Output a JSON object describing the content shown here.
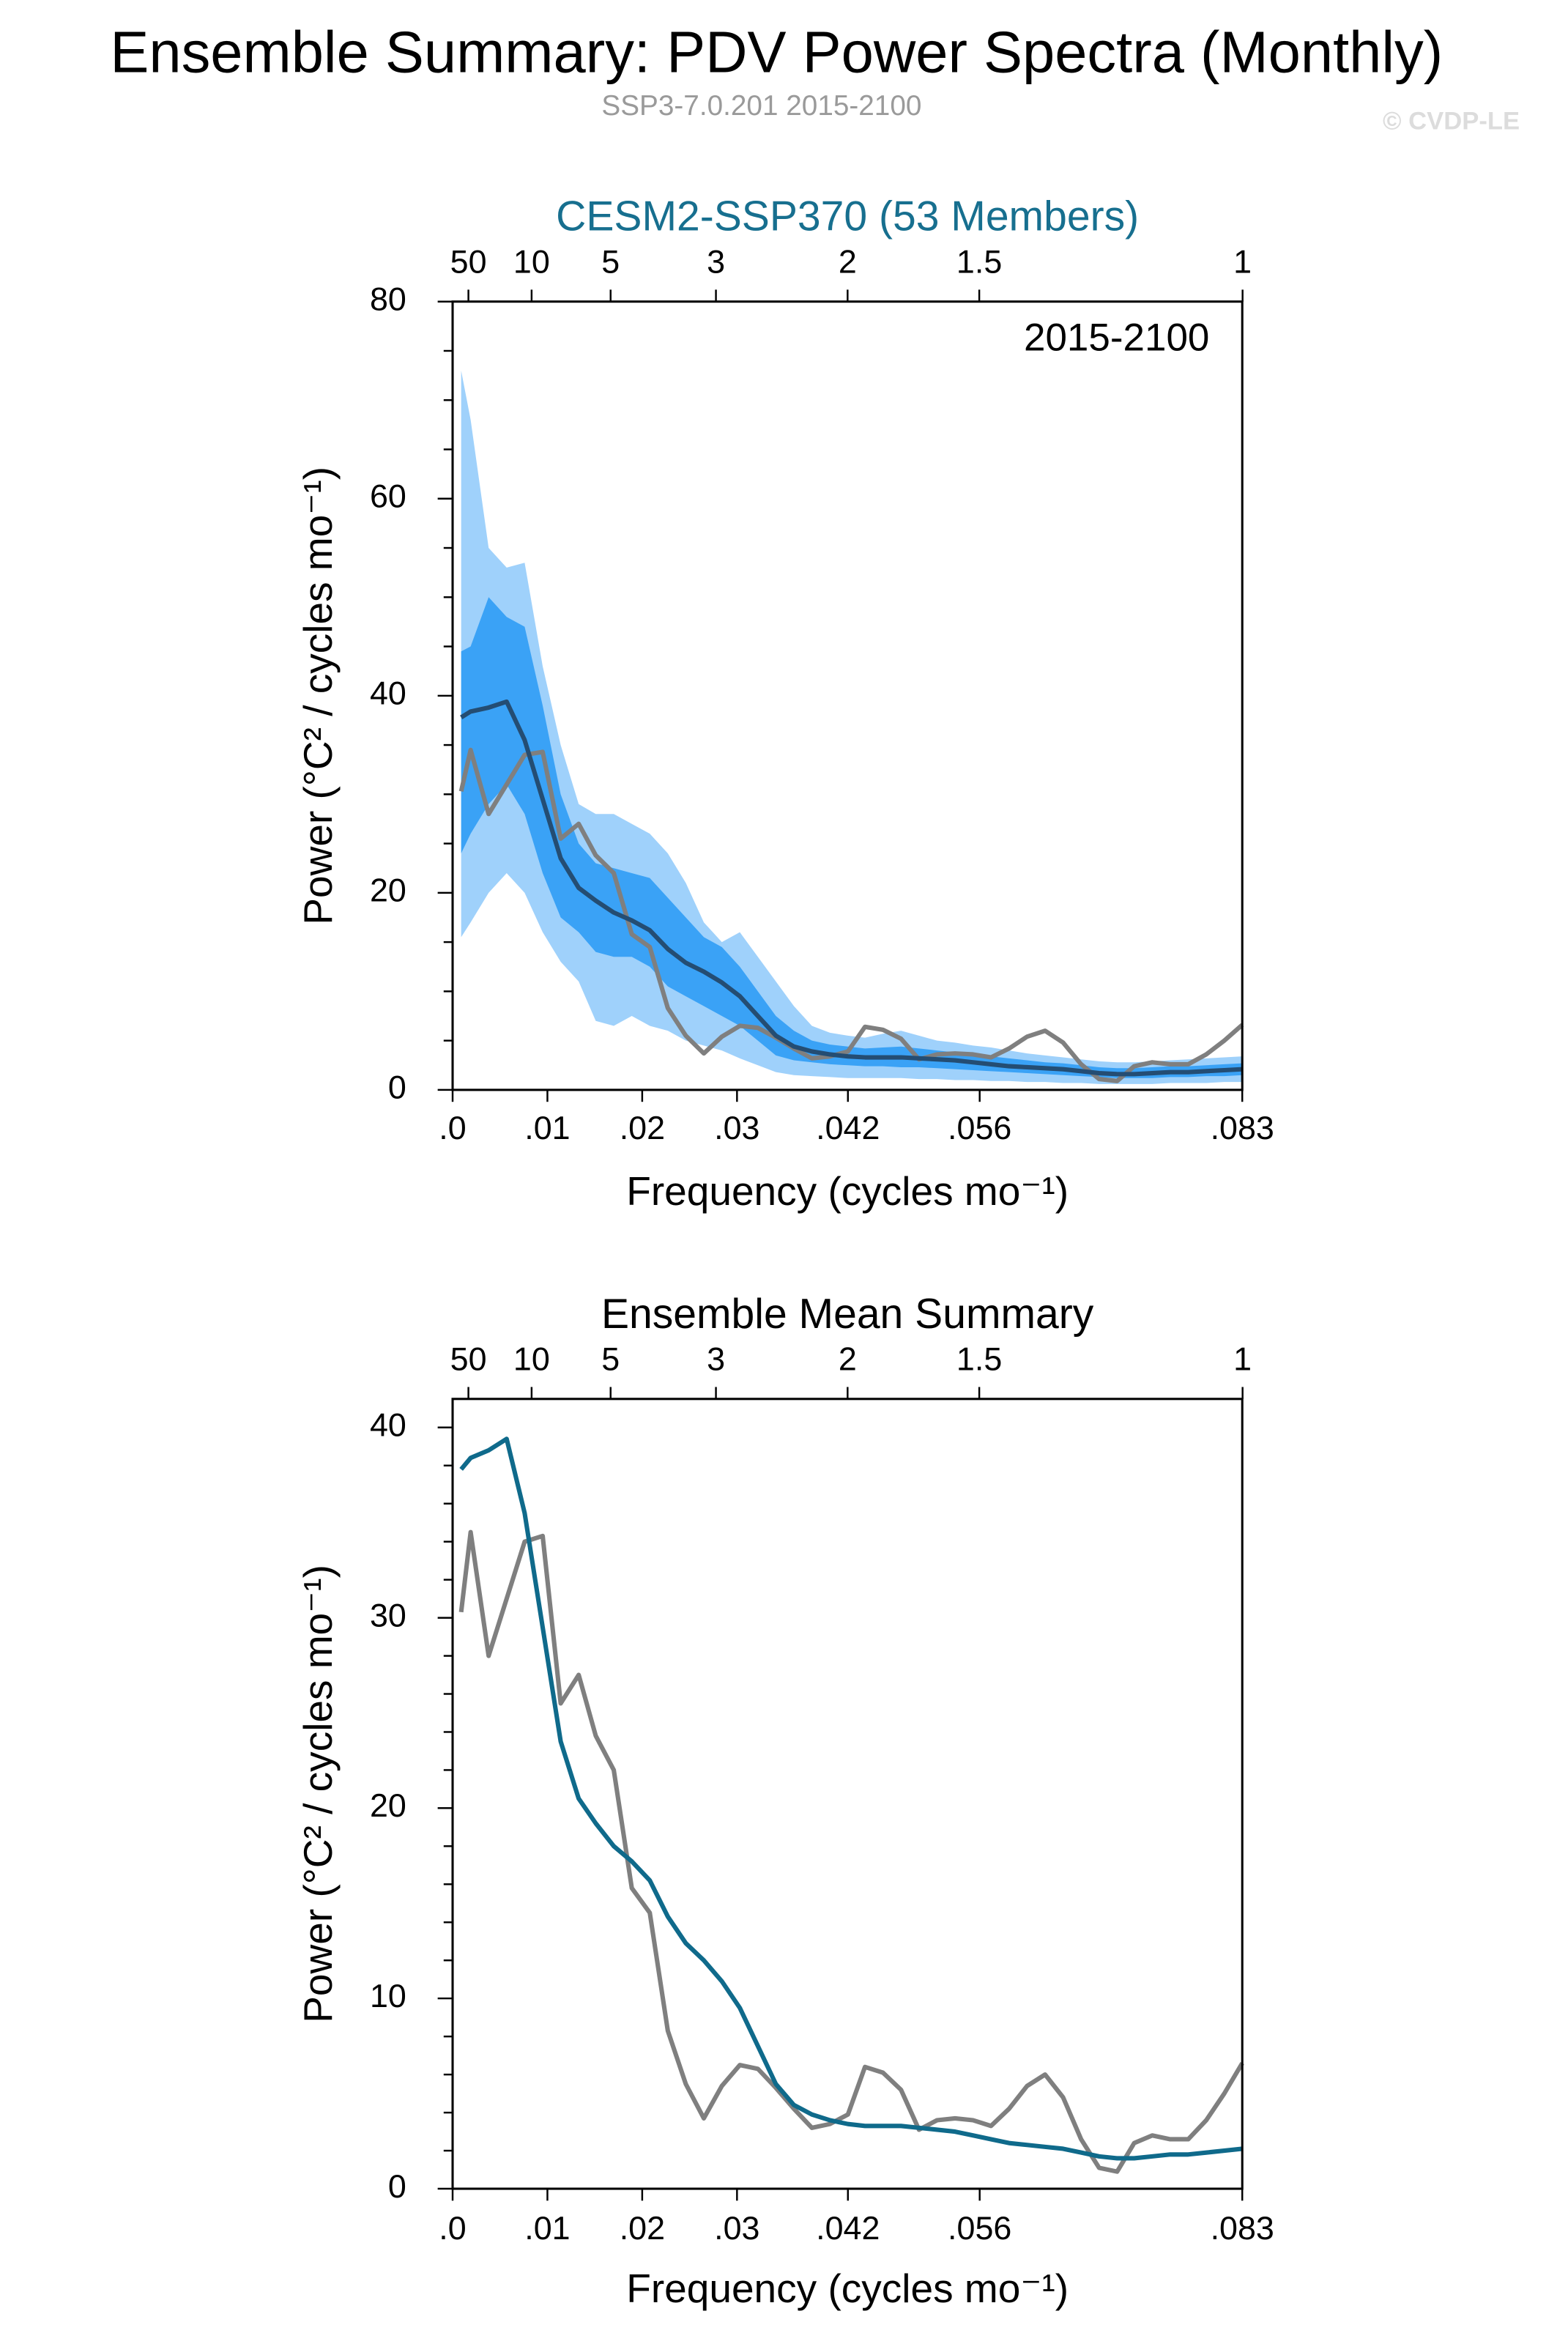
{
  "title": "Ensemble Summary: PDV Power Spectra (Monthly)",
  "subtitle": "SSP3-7.0.201 2015-2100",
  "credit": "© CVDP-LE",
  "chart_data": [
    {
      "type": "band",
      "title": "CESM2-SSP370 (53 Members)",
      "title_color": "#176f8f",
      "annotation": "2015-2100",
      "xlabel": "Frequency (cycles mo⁻¹)",
      "ylabel": "Power (°C² / cycles mo⁻¹)",
      "x": [
        0.0009,
        0.0019,
        0.0038,
        0.0057,
        0.0076,
        0.0095,
        0.0114,
        0.0133,
        0.0151,
        0.017,
        0.0189,
        0.0208,
        0.0227,
        0.0246,
        0.0265,
        0.0284,
        0.0303,
        0.0322,
        0.0341,
        0.036,
        0.0379,
        0.0398,
        0.0417,
        0.0435,
        0.0454,
        0.0473,
        0.0492,
        0.0511,
        0.053,
        0.0549,
        0.0568,
        0.0587,
        0.0606,
        0.0625,
        0.0644,
        0.0663,
        0.0682,
        0.0701,
        0.0719,
        0.0738,
        0.0757,
        0.0776,
        0.0795,
        0.0814,
        0.0833
      ],
      "bands": [
        {
          "color": "#9fd1fb",
          "upper": [
            73,
            68,
            55,
            53,
            53.5,
            43,
            35,
            29,
            28,
            28,
            27,
            26,
            24,
            21,
            17,
            15,
            16,
            13.5,
            11,
            8.5,
            6.5,
            5.8,
            5.5,
            5.3,
            5.7,
            6,
            5.5,
            5,
            4.8,
            4.5,
            4.3,
            4,
            3.7,
            3.5,
            3.3,
            3.1,
            2.9,
            2.8,
            2.8,
            2.9,
            3.0,
            3.1,
            3.2,
            3.3,
            3.4
          ],
          "lower": [
            15.5,
            17,
            20,
            22,
            20,
            16,
            13,
            11,
            7,
            6.5,
            7.5,
            6.5,
            6,
            5,
            4.5,
            4,
            3.2,
            2.5,
            1.8,
            1.5,
            1.4,
            1.3,
            1.2,
            1.2,
            1.2,
            1.2,
            1.1,
            1.1,
            1.0,
            1.0,
            0.9,
            0.9,
            0.8,
            0.8,
            0.7,
            0.7,
            0.6,
            0.6,
            0.6,
            0.6,
            0.7,
            0.7,
            0.7,
            0.8,
            0.8
          ]
        },
        {
          "color": "#3aa2f6",
          "upper": [
            44.5,
            45,
            50,
            48,
            47,
            39,
            30,
            25,
            23,
            22.5,
            22,
            21.5,
            19.5,
            17.5,
            15.5,
            14.5,
            12.5,
            10,
            7.5,
            6,
            5,
            4.6,
            4.4,
            4.2,
            4.3,
            4.4,
            4.2,
            4,
            3.8,
            3.6,
            3.4,
            3.2,
            3.0,
            2.8,
            2.7,
            2.5,
            2.3,
            2.2,
            2.2,
            2.3,
            2.4,
            2.4,
            2.5,
            2.6,
            2.7
          ],
          "lower": [
            24,
            26,
            29,
            31,
            28,
            22,
            17.5,
            16,
            14,
            13.5,
            13.5,
            12.5,
            10.5,
            9.5,
            8.5,
            7.5,
            6.5,
            5,
            3.5,
            3,
            2.8,
            2.6,
            2.5,
            2.4,
            2.4,
            2.3,
            2.3,
            2.2,
            2.1,
            2.0,
            1.9,
            1.8,
            1.7,
            1.6,
            1.5,
            1.4,
            1.3,
            1.2,
            1.2,
            1.2,
            1.3,
            1.3,
            1.4,
            1.4,
            1.5
          ]
        }
      ],
      "series": [
        {
          "color": "#7f7f7f",
          "values": [
            30.3,
            34.5,
            28,
            31,
            34,
            34.3,
            25.5,
            27,
            23.8,
            22,
            15.8,
            14.5,
            8.3,
            5.5,
            3.7,
            5.4,
            6.5,
            6.3,
            5.3,
            4.2,
            3.2,
            3.4,
            3.9,
            6.4,
            6.1,
            5.2,
            3.1,
            3.6,
            3.7,
            3.6,
            3.3,
            4.2,
            5.4,
            6.0,
            4.8,
            2.6,
            1.1,
            0.9,
            2.4,
            2.8,
            2.6,
            2.6,
            3.6,
            5.0,
            6.6
          ]
        },
        {
          "color": "#244d73",
          "values": [
            37.8,
            38.4,
            38.8,
            39.4,
            35.5,
            29.5,
            23.5,
            20.5,
            19.2,
            18.0,
            17.2,
            16.2,
            14.3,
            12.9,
            12.0,
            10.9,
            9.5,
            7.5,
            5.5,
            4.4,
            3.9,
            3.6,
            3.4,
            3.3,
            3.3,
            3.3,
            3.2,
            3.1,
            3.0,
            2.8,
            2.6,
            2.4,
            2.3,
            2.2,
            2.1,
            1.9,
            1.7,
            1.6,
            1.6,
            1.7,
            1.8,
            1.8,
            1.9,
            2.0,
            2.1
          ]
        }
      ],
      "xlim": [
        0,
        0.0833
      ],
      "xticks": [
        {
          "value": 0,
          "label": ".0"
        },
        {
          "value": 0.01,
          "label": ".01"
        },
        {
          "value": 0.02,
          "label": ".02"
        },
        {
          "value": 0.03,
          "label": ".03"
        },
        {
          "value": 0.0417,
          "label": ".042"
        },
        {
          "value": 0.0556,
          "label": ".056"
        },
        {
          "value": 0.0833,
          "label": ".083"
        }
      ],
      "x2ticks": [
        50,
        10,
        5,
        3,
        2,
        1.5,
        1
      ],
      "ylim": [
        0,
        80
      ],
      "yticks": [
        0,
        20,
        40,
        60,
        80
      ],
      "yminorticks": [
        5,
        10,
        15,
        25,
        30,
        35,
        45,
        50,
        55,
        65,
        70,
        75
      ]
    },
    {
      "type": "line",
      "title": "Ensemble Mean Summary",
      "title_color": "#000000",
      "xlabel": "Frequency (cycles mo⁻¹)",
      "ylabel": "Power (°C² / cycles mo⁻¹)",
      "x": [
        0.0009,
        0.0019,
        0.0038,
        0.0057,
        0.0076,
        0.0095,
        0.0114,
        0.0133,
        0.0151,
        0.017,
        0.0189,
        0.0208,
        0.0227,
        0.0246,
        0.0265,
        0.0284,
        0.0303,
        0.0322,
        0.0341,
        0.036,
        0.0379,
        0.0398,
        0.0417,
        0.0435,
        0.0454,
        0.0473,
        0.0492,
        0.0511,
        0.053,
        0.0549,
        0.0568,
        0.0587,
        0.0606,
        0.0625,
        0.0644,
        0.0663,
        0.0682,
        0.0701,
        0.0719,
        0.0738,
        0.0757,
        0.0776,
        0.0795,
        0.0814,
        0.0833
      ],
      "series": [
        {
          "color": "#7f7f7f",
          "values": [
            30.3,
            34.5,
            28,
            31,
            34,
            34.3,
            25.5,
            27,
            23.8,
            22,
            15.8,
            14.5,
            8.3,
            5.5,
            3.7,
            5.4,
            6.5,
            6.3,
            5.3,
            4.2,
            3.2,
            3.4,
            3.9,
            6.4,
            6.1,
            5.2,
            3.1,
            3.6,
            3.7,
            3.6,
            3.3,
            4.2,
            5.4,
            6.0,
            4.8,
            2.6,
            1.1,
            0.9,
            2.4,
            2.8,
            2.6,
            2.6,
            3.6,
            5.0,
            6.6
          ]
        },
        {
          "color": "#0f6a8b",
          "values": [
            37.8,
            38.4,
            38.8,
            39.4,
            35.5,
            29.5,
            23.5,
            20.5,
            19.2,
            18.0,
            17.2,
            16.2,
            14.3,
            12.9,
            12.0,
            10.9,
            9.5,
            7.5,
            5.5,
            4.4,
            3.9,
            3.6,
            3.4,
            3.3,
            3.3,
            3.3,
            3.2,
            3.1,
            3.0,
            2.8,
            2.6,
            2.4,
            2.3,
            2.2,
            2.1,
            1.9,
            1.7,
            1.6,
            1.6,
            1.7,
            1.8,
            1.8,
            1.9,
            2.0,
            2.1
          ]
        }
      ],
      "xlim": [
        0,
        0.0833
      ],
      "xticks": [
        {
          "value": 0,
          "label": ".0"
        },
        {
          "value": 0.01,
          "label": ".01"
        },
        {
          "value": 0.02,
          "label": ".02"
        },
        {
          "value": 0.03,
          "label": ".03"
        },
        {
          "value": 0.0417,
          "label": ".042"
        },
        {
          "value": 0.0556,
          "label": ".056"
        },
        {
          "value": 0.0833,
          "label": ".083"
        }
      ],
      "x2ticks": [
        50,
        10,
        5,
        3,
        2,
        1.5,
        1
      ],
      "ylim": [
        0,
        41.5
      ],
      "yticks": [
        0,
        10,
        20,
        30,
        40
      ],
      "yminorticks": [
        2,
        4,
        6,
        8,
        12,
        14,
        16,
        18,
        22,
        24,
        26,
        28,
        32,
        34,
        36,
        38
      ]
    }
  ]
}
